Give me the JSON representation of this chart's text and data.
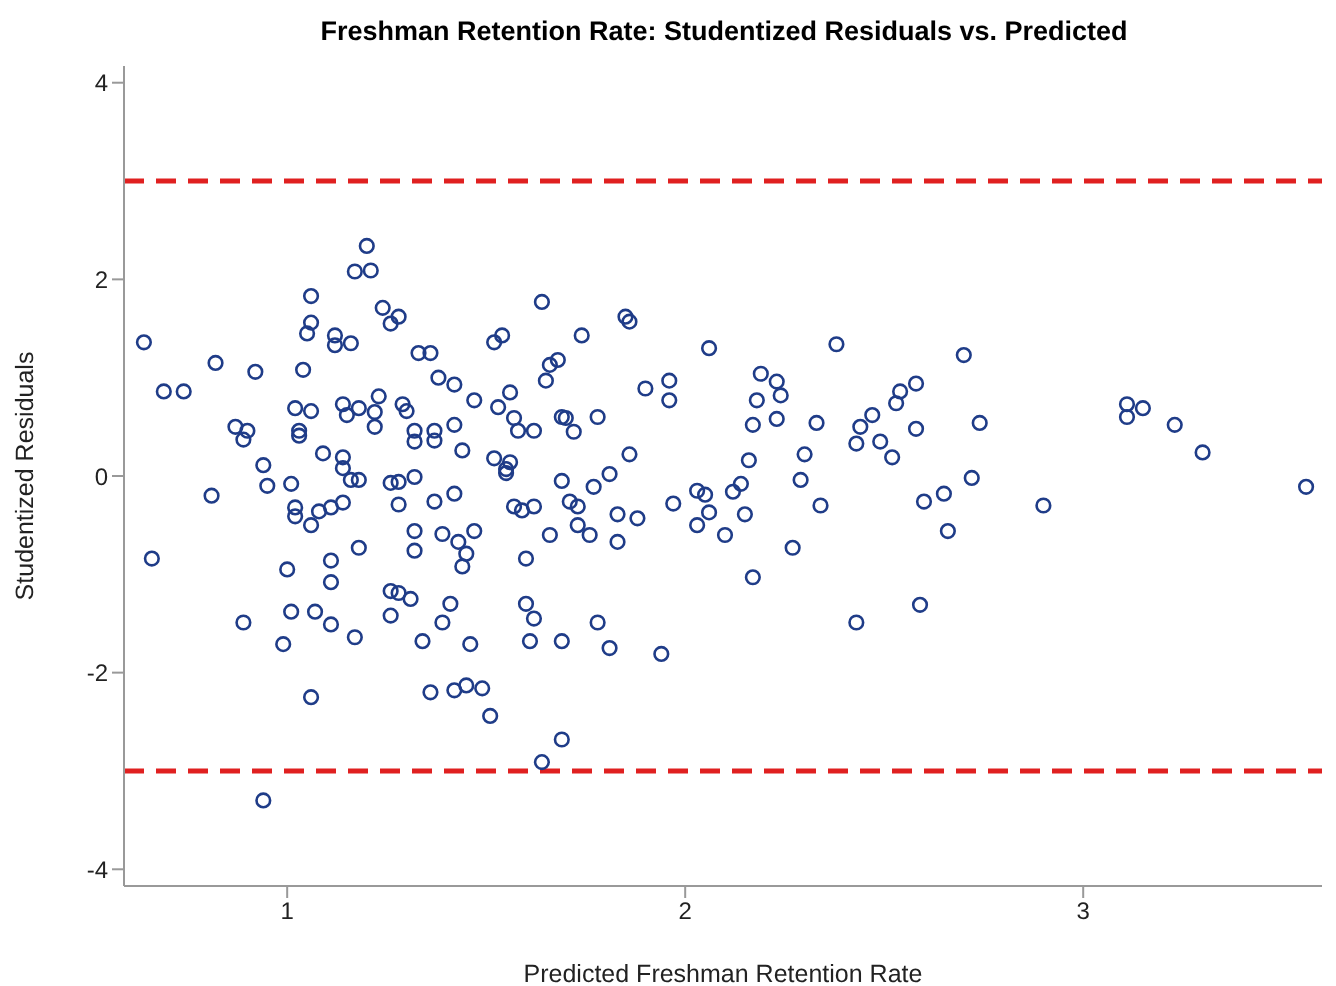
{
  "chart_data": {
    "type": "scatter",
    "title": "Freshman Retention Rate: Studentized Residuals vs. Predicted",
    "xlabel": "Predicted Freshman Retention Rate",
    "ylabel": "Studentized Residuals",
    "xlim": [
      0.59,
      3.6
    ],
    "xticks": [
      1,
      2,
      3
    ],
    "ylim": [
      -4.17,
      4.17
    ],
    "yticks": [
      -4,
      -2,
      0,
      2,
      4
    ],
    "grid": false,
    "marker": "circle",
    "series": [
      {
        "color": "#1f3c88",
        "x": [
          0.64,
          0.66,
          0.69,
          0.74,
          0.82,
          0.81,
          0.87,
          0.89,
          0.9,
          0.89,
          0.92,
          0.94,
          0.95,
          0.94,
          0.99,
          1.0,
          1.01,
          1.01,
          1.02,
          1.02,
          1.03,
          1.03,
          1.02,
          1.04,
          1.05,
          1.06,
          1.06,
          1.06,
          1.06,
          1.06,
          1.07,
          1.08,
          1.09,
          1.11,
          1.11,
          1.11,
          1.11,
          1.12,
          1.12,
          1.14,
          1.14,
          1.14,
          1.15,
          1.14,
          1.16,
          1.16,
          1.17,
          1.17,
          1.18,
          1.18,
          1.18,
          1.2,
          1.21,
          1.22,
          1.22,
          1.23,
          1.24,
          1.26,
          1.26,
          1.26,
          1.28,
          1.26,
          1.28,
          1.28,
          1.28,
          1.29,
          1.3,
          1.31,
          1.32,
          1.32,
          1.32,
          1.32,
          1.32,
          1.34,
          1.33,
          1.36,
          1.36,
          1.37,
          1.37,
          1.37,
          1.38,
          1.39,
          1.39,
          1.41,
          1.42,
          1.42,
          1.42,
          1.42,
          1.43,
          1.44,
          1.44,
          1.45,
          1.45,
          1.46,
          1.47,
          1.47,
          1.49,
          1.51,
          1.52,
          1.52,
          1.53,
          1.54,
          1.55,
          1.56,
          1.56,
          1.57,
          1.58,
          1.57,
          1.59,
          1.6,
          1.6,
          1.62,
          1.62,
          1.61,
          1.62,
          1.64,
          1.64,
          1.55,
          1.65,
          1.66,
          1.68,
          1.66,
          1.69,
          1.7,
          1.72,
          1.69,
          1.71,
          1.73,
          1.73,
          1.76,
          1.69,
          1.69,
          1.74,
          1.78,
          1.77,
          1.78,
          1.81,
          1.81,
          1.83,
          1.83,
          1.85,
          1.86,
          1.86,
          1.88,
          1.9,
          1.94,
          1.96,
          1.96,
          1.97,
          2.03,
          2.03,
          2.05,
          2.06,
          2.06,
          2.1,
          2.12,
          2.14,
          2.15,
          2.16,
          2.17,
          2.17,
          2.18,
          2.19,
          2.23,
          2.24,
          2.23,
          2.27,
          2.29,
          2.3,
          2.33,
          2.34,
          2.38,
          2.43,
          2.43,
          2.44,
          2.47,
          2.49,
          2.52,
          2.53,
          2.54,
          2.58,
          2.58,
          2.59,
          2.6,
          2.65,
          2.66,
          2.7,
          2.72,
          2.74,
          2.9,
          3.11,
          3.11,
          3.15,
          3.23,
          3.3,
          3.56
        ],
        "values": [
          1.36,
          -0.84,
          0.86,
          0.86,
          1.15,
          -0.2,
          0.5,
          0.37,
          0.46,
          -1.49,
          1.06,
          0.11,
          -0.1,
          -3.3,
          -1.71,
          -0.95,
          -0.08,
          -1.38,
          -0.32,
          -0.41,
          0.46,
          0.41,
          0.69,
          1.08,
          1.45,
          1.56,
          1.83,
          0.66,
          -0.5,
          -2.25,
          -1.38,
          -0.36,
          0.23,
          -0.86,
          -1.08,
          -0.32,
          -1.51,
          1.43,
          1.33,
          0.73,
          0.19,
          -0.27,
          0.62,
          0.08,
          -0.04,
          1.35,
          2.08,
          -1.64,
          -0.73,
          -0.04,
          0.69,
          2.34,
          2.09,
          0.65,
          0.5,
          0.81,
          1.71,
          -1.42,
          -1.17,
          1.55,
          1.62,
          -0.07,
          -0.06,
          -0.29,
          -1.19,
          0.73,
          0.66,
          -1.25,
          -0.01,
          0.35,
          0.46,
          -0.56,
          -0.76,
          -1.68,
          1.25,
          1.25,
          -2.2,
          -0.26,
          0.46,
          0.36,
          1.0,
          -0.59,
          -1.49,
          -1.3,
          0.93,
          -0.18,
          0.52,
          -2.18,
          -0.67,
          -0.92,
          0.26,
          -2.13,
          -0.79,
          -1.71,
          0.77,
          -0.56,
          -2.16,
          -2.44,
          1.36,
          0.18,
          0.7,
          1.43,
          0.07,
          0.14,
          0.85,
          0.59,
          0.46,
          -0.31,
          -0.35,
          -0.84,
          -1.3,
          -0.31,
          -1.45,
          -1.68,
          0.46,
          -2.91,
          1.77,
          0.03,
          0.97,
          1.13,
          1.18,
          -0.6,
          0.6,
          0.59,
          0.45,
          -0.05,
          -0.26,
          -0.31,
          -0.5,
          -0.6,
          -1.68,
          -2.68,
          1.43,
          0.6,
          -0.11,
          -1.49,
          0.02,
          -1.75,
          -0.39,
          -0.67,
          1.62,
          1.57,
          0.22,
          -0.43,
          0.89,
          -1.81,
          0.97,
          0.77,
          -0.28,
          -0.15,
          -0.5,
          -0.19,
          -0.37,
          1.3,
          -0.6,
          -0.16,
          -0.08,
          -0.39,
          0.16,
          -1.03,
          0.52,
          0.77,
          1.04,
          0.96,
          0.82,
          0.58,
          -0.73,
          -0.04,
          0.22,
          0.54,
          -0.3,
          1.34,
          -1.49,
          0.33,
          0.5,
          0.62,
          0.35,
          0.19,
          0.74,
          0.86,
          0.94,
          0.48,
          -1.31,
          -0.26,
          -0.18,
          -0.56,
          1.23,
          -0.02,
          0.54,
          -0.3,
          0.73,
          0.6,
          0.69,
          0.52,
          0.24,
          -0.11
        ]
      }
    ],
    "ref_lines": [
      {
        "axis": "y",
        "value": 3,
        "color": "#e02020",
        "line_style": "dashed"
      },
      {
        "axis": "y",
        "value": -3,
        "color": "#e02020",
        "line_style": "dashed"
      }
    ]
  }
}
